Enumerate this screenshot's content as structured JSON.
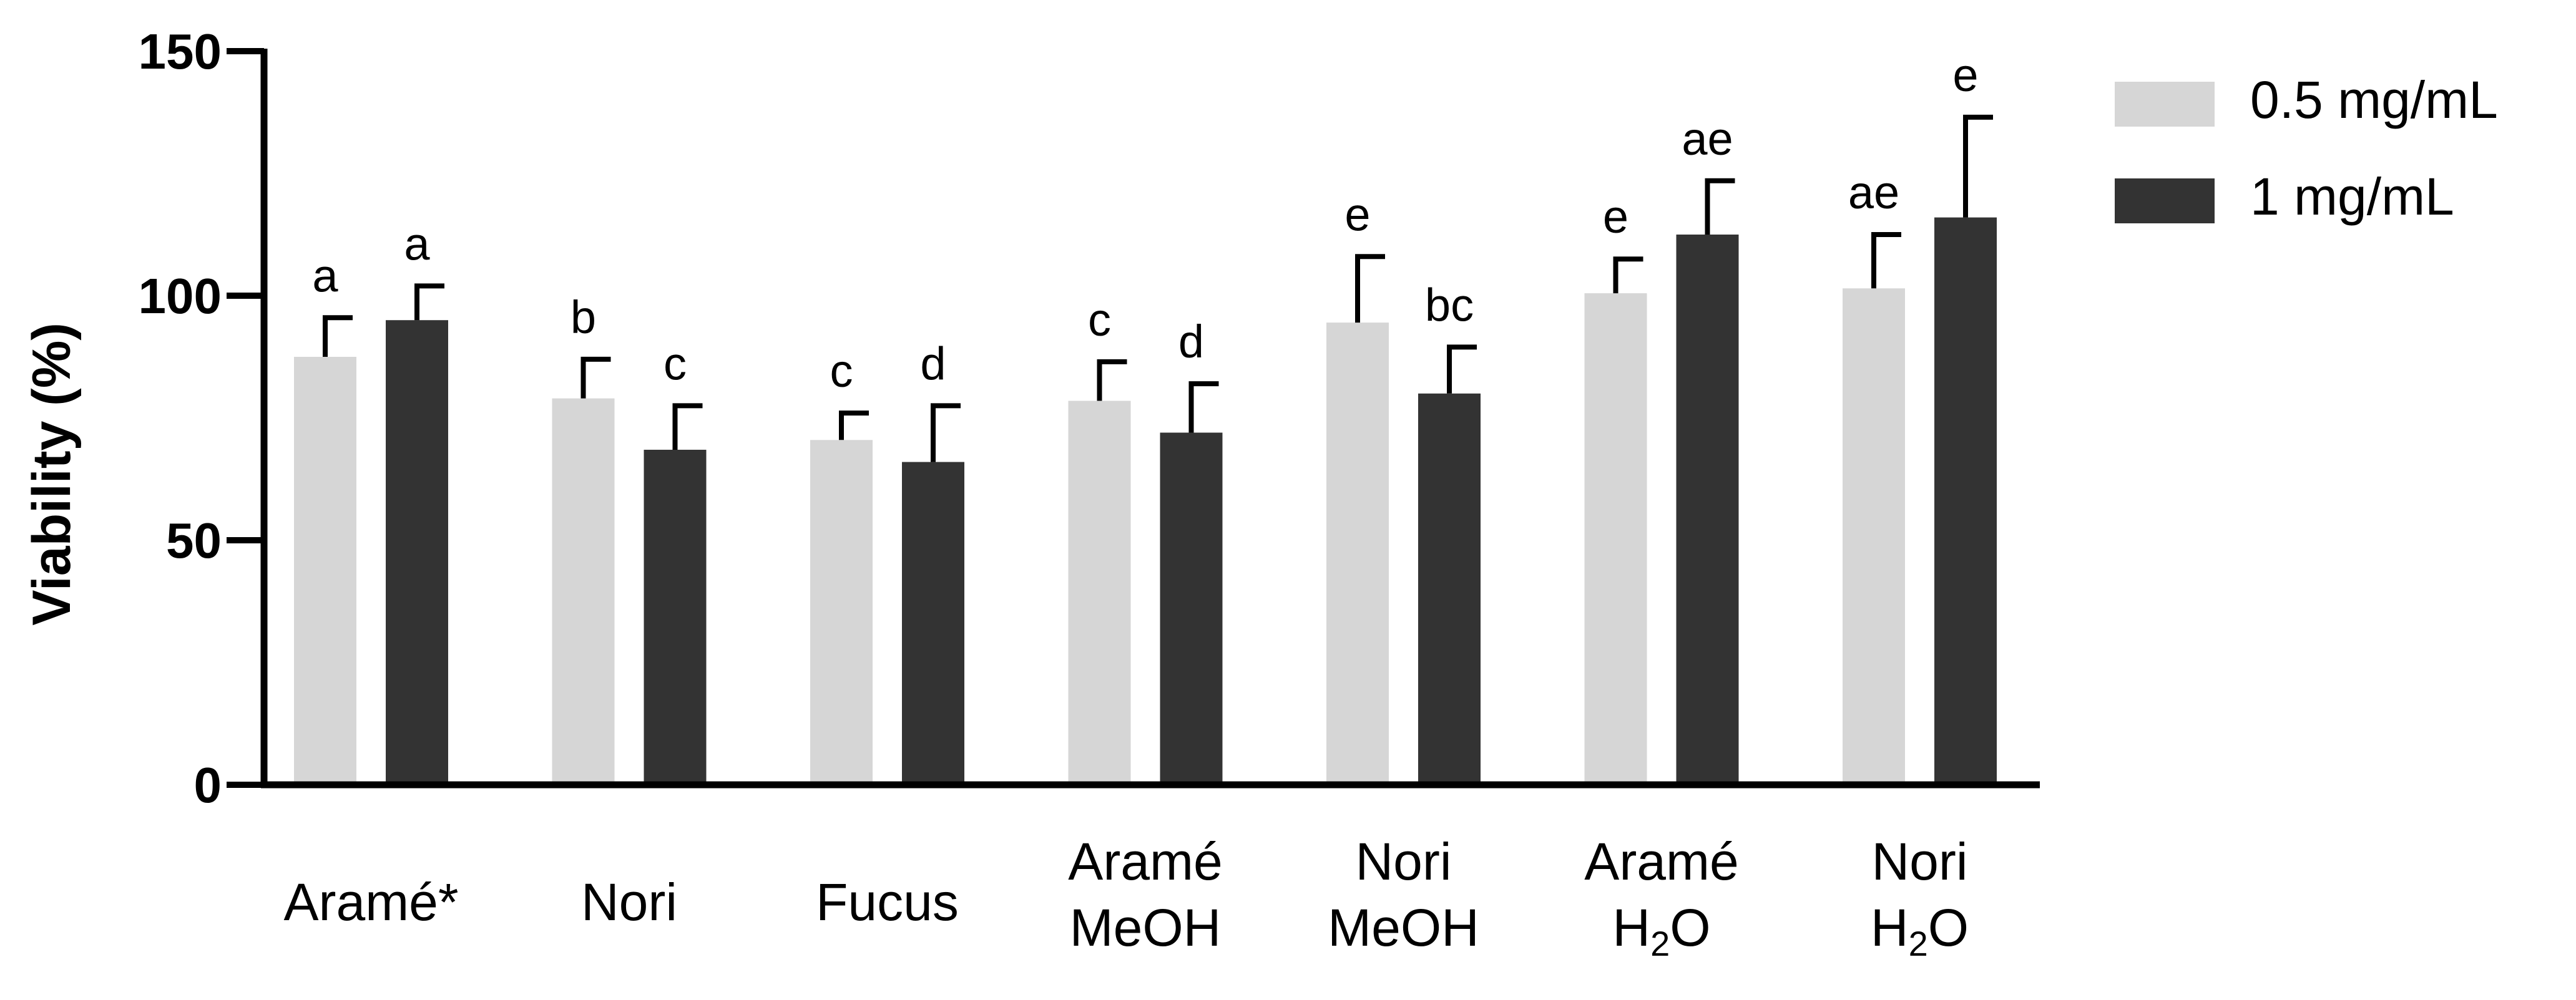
{
  "chart_data": {
    "type": "bar",
    "ylabel": "Viability (%)",
    "xlabel": "",
    "ylim": [
      0,
      150
    ],
    "yticks": [
      0,
      50,
      100,
      150
    ],
    "legend_position": "top-right",
    "categories": [
      [
        "Aramé*"
      ],
      [
        "Nori"
      ],
      [
        "Fucus"
      ],
      [
        "Aramé",
        "MeOH"
      ],
      [
        "Nori",
        "MeOH"
      ],
      [
        "Aramé",
        "H2O"
      ],
      [
        "Nori",
        "H2O"
      ]
    ],
    "series": [
      {
        "name": "0.5 mg/mL",
        "color": "#d6d6d6",
        "values": [
          87.5,
          79,
          70.5,
          78.5,
          94.5,
          100.5,
          101.5
        ],
        "errors": [
          8,
          8,
          5.5,
          8,
          13.5,
          7,
          11
        ],
        "letters": [
          "a",
          "b",
          "c",
          "c",
          "e",
          "e",
          "ae"
        ]
      },
      {
        "name": "1 mg/mL",
        "color": "#333333",
        "values": [
          95,
          68.5,
          66,
          72,
          80,
          112.5,
          116
        ],
        "errors": [
          7,
          9,
          11.5,
          10,
          9.5,
          11,
          20.5
        ],
        "letters": [
          "a",
          "c",
          "d",
          "d",
          "bc",
          "ae",
          "e"
        ]
      }
    ]
  }
}
